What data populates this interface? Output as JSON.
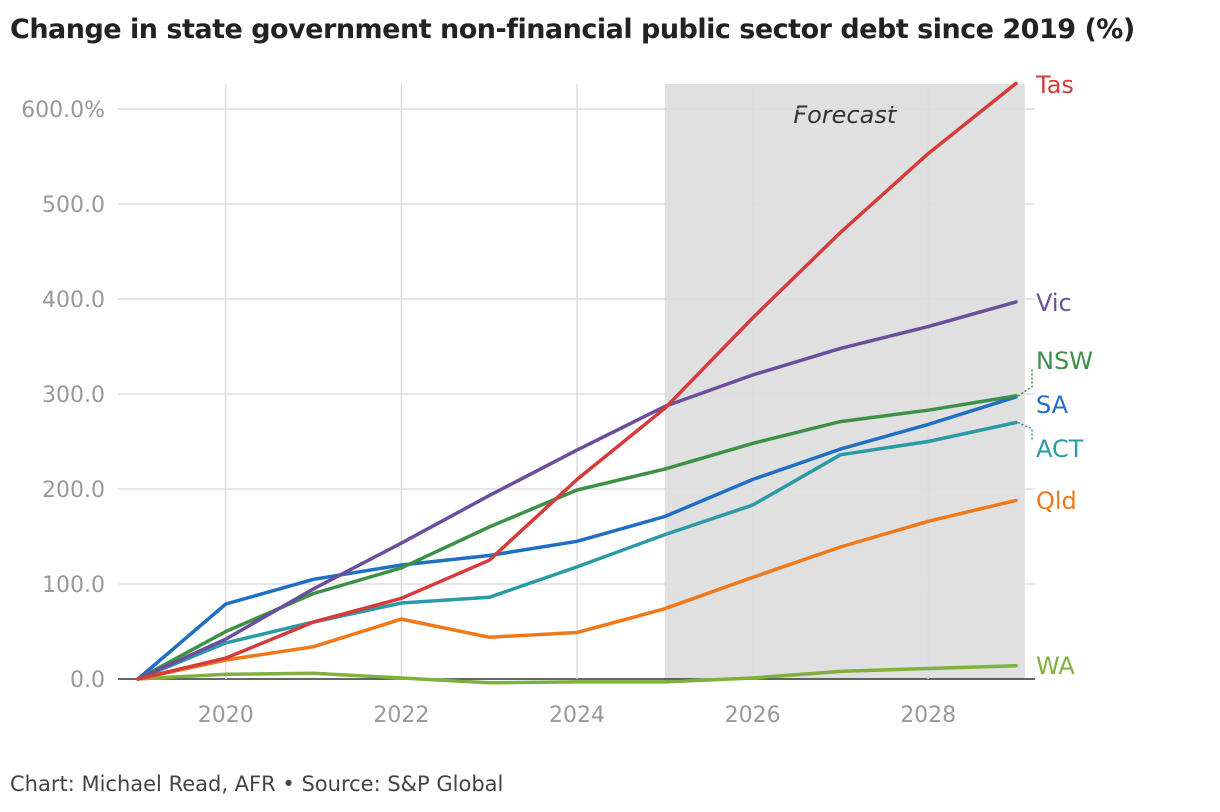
{
  "page": {
    "title": "Change in state government non-financial public sector debt since 2019 (%)",
    "footer": "Chart: Michael Read, AFR • Source: S&P Global"
  },
  "chart_data": {
    "type": "line",
    "title": "Change in state government non-financial public sector debt since 2019 (%)",
    "xlabel": "",
    "ylabel": "",
    "xlim": [
      2018.7,
      2029.2
    ],
    "ylim": [
      0,
      630
    ],
    "x_ticks": [
      2020,
      2022,
      2024,
      2026,
      2028
    ],
    "x_tick_labels": [
      "2020",
      "2022",
      "2024",
      "2026",
      "2028"
    ],
    "y_ticks": [
      0,
      100,
      200,
      300,
      400,
      500,
      600
    ],
    "y_tick_labels": [
      "0.0",
      "100.0",
      "200.0",
      "300.0",
      "400.0",
      "500.0",
      "600.0%"
    ],
    "grid": true,
    "forecast": {
      "from": 2025,
      "to": 2029.1,
      "label": "Forecast",
      "color": "#e0e0e0"
    },
    "x": [
      2019,
      2020,
      2021,
      2022,
      2023,
      2024,
      2025,
      2026,
      2027,
      2028,
      2029
    ],
    "series": [
      {
        "name": "Tas",
        "color": "#d63b3b",
        "values": [
          0,
          22,
          60,
          85,
          125,
          210,
          285,
          380,
          470,
          553,
          627
        ]
      },
      {
        "name": "Vic",
        "color": "#6b4f9c",
        "values": [
          0,
          42,
          95,
          143,
          193,
          241,
          287,
          320,
          348,
          371,
          397
        ]
      },
      {
        "name": "NSW",
        "color": "#3d9147",
        "values": [
          0,
          50,
          90,
          117,
          160,
          199,
          221,
          248,
          271,
          283,
          298
        ]
      },
      {
        "name": "SA",
        "color": "#1f6fc5",
        "values": [
          0,
          79,
          105,
          120,
          130,
          145,
          171,
          210,
          242,
          268,
          297
        ]
      },
      {
        "name": "ACT",
        "color": "#2a9aa6",
        "values": [
          0,
          38,
          60,
          80,
          86,
          118,
          152,
          183,
          236,
          250,
          270
        ]
      },
      {
        "name": "Qld",
        "color": "#f07818",
        "values": [
          0,
          20,
          34,
          63,
          44,
          49,
          74,
          107,
          139,
          166,
          188
        ]
      },
      {
        "name": "WA",
        "color": "#7fb03c",
        "values": [
          0,
          5,
          6,
          1,
          -4,
          -3,
          -3,
          1,
          8,
          11,
          14
        ]
      }
    ]
  }
}
